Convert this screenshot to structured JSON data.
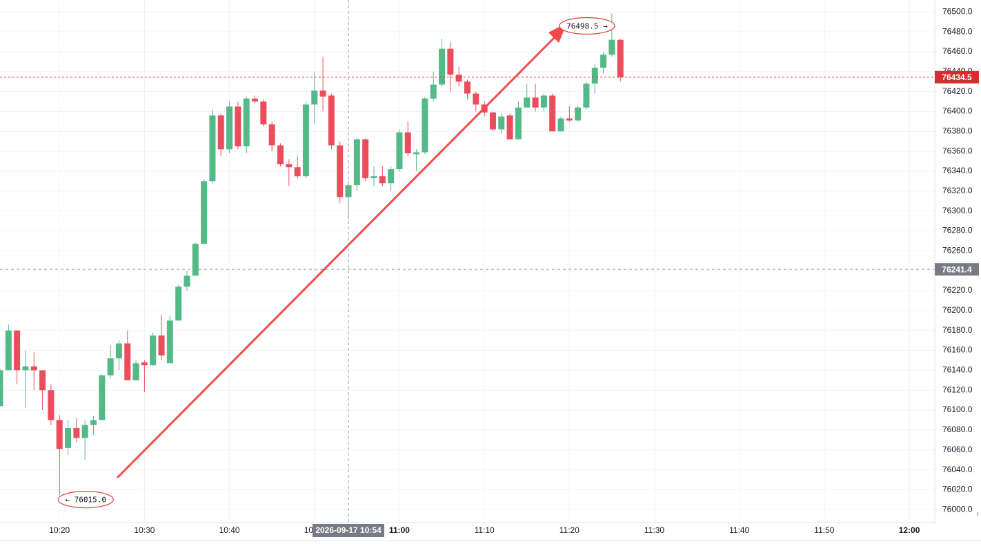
{
  "chart_data": {
    "type": "candlestick",
    "x": [
      "10:13",
      "10:14",
      "10:15",
      "10:16",
      "10:17",
      "10:18",
      "10:19",
      "10:20",
      "10:21",
      "10:22",
      "10:23",
      "10:24",
      "10:25",
      "10:26",
      "10:27",
      "10:28",
      "10:29",
      "10:30",
      "10:31",
      "10:32",
      "10:33",
      "10:34",
      "10:35",
      "10:36",
      "10:37",
      "10:38",
      "10:39",
      "10:40",
      "10:41",
      "10:42",
      "10:43",
      "10:44",
      "10:45",
      "10:46",
      "10:47",
      "10:48",
      "10:49",
      "10:50",
      "10:51",
      "10:52",
      "10:53",
      "10:54",
      "10:55",
      "10:56",
      "10:57",
      "10:58",
      "10:59",
      "11:00",
      "11:01",
      "11:02",
      "11:03",
      "11:04",
      "11:05",
      "11:06",
      "11:07",
      "11:08",
      "11:09",
      "11:10",
      "11:11",
      "11:12",
      "11:13",
      "11:14",
      "11:15",
      "11:16",
      "11:17",
      "11:18",
      "11:19",
      "11:20",
      "11:21",
      "11:22",
      "11:23",
      "11:24",
      "11:25",
      "11:26"
    ],
    "open": [
      76104,
      76140,
      76180,
      76140,
      76144,
      76140,
      76120,
      76090,
      76062,
      76082,
      76072,
      76085,
      76090,
      76135,
      76152,
      76167,
      76130,
      76148,
      76145,
      76175,
      76147,
      76190,
      76224,
      76235,
      76267,
      76330,
      76396,
      76362,
      76405,
      76365,
      76413,
      76410,
      76387,
      76366,
      76347,
      76344,
      76335,
      76407,
      76421,
      76416,
      76366,
      76314,
      76326,
      76372,
      76333,
      76335,
      76328,
      76342,
      76379,
      76357,
      76359,
      76413,
      76427,
      76463,
      76437,
      76430,
      76418,
      76407,
      76399,
      76382,
      76396,
      76372,
      76404,
      76414,
      76404,
      76416,
      76380,
      76393,
      76391,
      76404,
      76428,
      76444,
      76457,
      76472
    ],
    "high": [
      76142,
      76186,
      76180,
      76160,
      76158,
      76140,
      76126,
      76095,
      76090,
      76092,
      76090,
      76094,
      76136,
      76165,
      76170,
      76180,
      76150,
      76150,
      76178,
      76196,
      76195,
      76226,
      76240,
      76268,
      76332,
      76402,
      76398,
      76410,
      76410,
      76415,
      76416,
      76412,
      76390,
      76368,
      76352,
      76355,
      76410,
      76440,
      76455,
      76418,
      76370,
      76330,
      76373,
      76373,
      76345,
      76345,
      76345,
      76382,
      76390,
      76362,
      76415,
      76440,
      76473,
      76470,
      76445,
      76432,
      76420,
      76410,
      76400,
      76398,
      76398,
      76410,
      76428,
      76428,
      76418,
      76418,
      76395,
      76405,
      76406,
      76430,
      76448,
      76460,
      76498.5,
      76473
    ],
    "low": [
      76104,
      76140,
      76126,
      76102,
      76120,
      76100,
      76085,
      76015,
      76055,
      76068,
      76050,
      76075,
      76090,
      76132,
      76140,
      76130,
      76130,
      76118,
      76145,
      76150,
      76147,
      76190,
      76220,
      76235,
      76267,
      76328,
      76355,
      76358,
      76362,
      76358,
      76408,
      76385,
      76360,
      76345,
      76325,
      76333,
      76333,
      76388,
      76400,
      76362,
      76308,
      76292,
      76320,
      76330,
      76325,
      76325,
      76320,
      76340,
      76355,
      76340,
      76357,
      76410,
      76425,
      76420,
      76425,
      76412,
      76400,
      76395,
      76380,
      76378,
      76372,
      76372,
      76404,
      76400,
      76400,
      76380,
      76380,
      76390,
      76390,
      76402,
      76418,
      76438,
      76455,
      76430
    ],
    "close": [
      76140,
      76180,
      76140,
      76144,
      76140,
      76120,
      76090,
      76061,
      76082,
      76072,
      76085,
      76090,
      76135,
      76152,
      76167,
      76130,
      76147,
      76145,
      76175,
      76155,
      76190,
      76224,
      76235,
      76267,
      76330,
      76396,
      76362,
      76405,
      76365,
      76413,
      76410,
      76387,
      76366,
      76347,
      76344,
      76335,
      76407,
      76421,
      76415,
      76366,
      76314,
      76326,
      76372,
      76333,
      76335,
      76328,
      76342,
      76379,
      76358,
      76359,
      76413,
      76427,
      76463,
      76437,
      76430,
      76418,
      76407,
      76399,
      76382,
      76395,
      76372,
      76404,
      76414,
      76404,
      76416,
      76380,
      76393,
      76391,
      76404,
      76428,
      76444,
      76457,
      76472,
      76434.5
    ],
    "up_color": "#53b987",
    "down_color": "#eb4d5c",
    "xlim": [
      "10:13",
      "12:03"
    ],
    "xticks": [
      "10:20",
      "10:30",
      "10:40",
      "10:50",
      "11:00",
      "11:10",
      "11:20",
      "11:30",
      "11:40",
      "11:50",
      "12:00"
    ],
    "ylim": [
      75987,
      76512
    ],
    "yticks": [
      {
        "value": 76000,
        "label": "76000.0"
      },
      {
        "value": 76020,
        "label": "76020.0"
      },
      {
        "value": 76040,
        "label": "76040.0"
      },
      {
        "value": 76060,
        "label": "76060.0"
      },
      {
        "value": 76080,
        "label": "76080.0"
      },
      {
        "value": 76100,
        "label": "76100.0"
      },
      {
        "value": 76120,
        "label": "76120.0"
      },
      {
        "value": 76140,
        "label": "76140.0"
      },
      {
        "value": 76160,
        "label": "76160.0"
      },
      {
        "value": 76180,
        "label": "76180.0"
      },
      {
        "value": 76200,
        "label": "76200.0"
      },
      {
        "value": 76220,
        "label": "76220.0"
      },
      {
        "value": 76240,
        "label": "76240.0"
      },
      {
        "value": 76260,
        "label": "76260.0"
      },
      {
        "value": 76280,
        "label": "76280.0"
      },
      {
        "value": 76300,
        "label": "76300.0"
      },
      {
        "value": 76320,
        "label": "76320.0"
      },
      {
        "value": 76340,
        "label": "76340.0"
      },
      {
        "value": 76360,
        "label": "76360.0"
      },
      {
        "value": 76380,
        "label": "76380.0"
      },
      {
        "value": 76400,
        "label": "76400.0"
      },
      {
        "value": 76420,
        "label": "76420.0"
      },
      {
        "value": 76440,
        "label": "76440.0"
      },
      {
        "value": 76460,
        "label": "76460.0"
      },
      {
        "value": 76480,
        "label": "76480.0"
      },
      {
        "value": 76500,
        "label": "76500.0"
      }
    ],
    "grid": true,
    "last_price": {
      "value": 76434.5,
      "color": "#d32f2f"
    },
    "crosshair": {
      "x": "10:54",
      "x_label": "2026-09-17 10:54",
      "y": 76241.4,
      "color": "#787b86"
    },
    "annotations": [
      {
        "x": "11:25",
        "value": 76498.5,
        "text": "76498.5 →"
      },
      {
        "x": "10:20",
        "value": 76015,
        "text": "← 76015.0"
      }
    ]
  }
}
